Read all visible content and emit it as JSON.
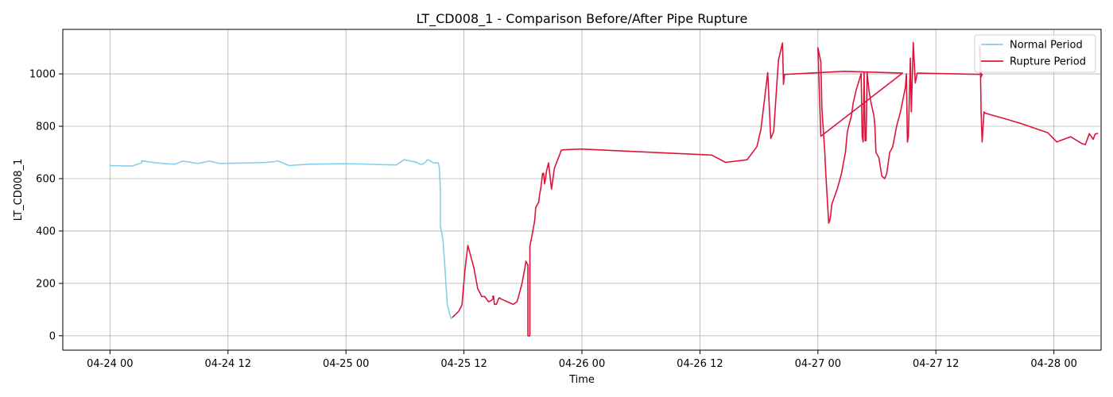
{
  "chart_data": {
    "type": "line",
    "title": "LT_CD008_1 - Comparison Before/After Pipe Rupture",
    "xlabel": "Time",
    "ylabel": "LT_CD008_1",
    "x_unit": "hours since 04-24 00:00",
    "xlim": [
      -4.8,
      100.8
    ],
    "ylim": [
      -55,
      1170
    ],
    "x_ticks": [
      {
        "value": 0,
        "label": "04-24 00"
      },
      {
        "value": 12,
        "label": "04-24 12"
      },
      {
        "value": 24,
        "label": "04-25 00"
      },
      {
        "value": 36,
        "label": "04-25 12"
      },
      {
        "value": 48,
        "label": "04-26 00"
      },
      {
        "value": 60,
        "label": "04-26 12"
      },
      {
        "value": 72,
        "label": "04-27 00"
      },
      {
        "value": 84,
        "label": "04-27 12"
      },
      {
        "value": 96,
        "label": "04-28 00"
      }
    ],
    "y_ticks": [
      {
        "value": 0,
        "label": "0"
      },
      {
        "value": 200,
        "label": "200"
      },
      {
        "value": 400,
        "label": "400"
      },
      {
        "value": 600,
        "label": "600"
      },
      {
        "value": 800,
        "label": "800"
      },
      {
        "value": 1000,
        "label": "1000"
      }
    ],
    "grid": true,
    "legend_position": "top-right",
    "series": [
      {
        "name": "Normal Period",
        "color": "#87ceeb",
        "points": [
          [
            0,
            650
          ],
          [
            2.2,
            648
          ],
          [
            3.2,
            660
          ],
          [
            3.2,
            660
          ],
          [
            3.2,
            660
          ],
          [
            3.3,
            668
          ],
          [
            3.2,
            668
          ],
          [
            4.8,
            660
          ],
          [
            5.7,
            657
          ],
          [
            6.6,
            655
          ],
          [
            7.4,
            667
          ],
          [
            8.3,
            662
          ],
          [
            8.0,
            664
          ],
          [
            8.9,
            658
          ],
          [
            10.1,
            667
          ],
          [
            10.6,
            663
          ],
          [
            11.1,
            658
          ],
          [
            14.3,
            660
          ],
          [
            15.9,
            662
          ],
          [
            16.8,
            665
          ],
          [
            17.1,
            668
          ],
          [
            18.2,
            650
          ],
          [
            20.2,
            655
          ],
          [
            23.9,
            657
          ],
          [
            25.4,
            656
          ],
          [
            29.1,
            652
          ],
          [
            29.9,
            672
          ],
          [
            31.1,
            663
          ],
          [
            31.2,
            662
          ],
          [
            31.3,
            660
          ],
          [
            31.4,
            658
          ],
          [
            31.5,
            656
          ],
          [
            31.6,
            655
          ],
          [
            31.8,
            655
          ],
          [
            32.0,
            660
          ],
          [
            32.3,
            672
          ],
          [
            32.5,
            670
          ],
          [
            32.6,
            667
          ],
          [
            32.9,
            660
          ],
          [
            33.1,
            660
          ],
          [
            33.4,
            660
          ],
          [
            33.5,
            640
          ],
          [
            33.6,
            560
          ],
          [
            33.6,
            420
          ],
          [
            33.8,
            380
          ],
          [
            33.9,
            350
          ],
          [
            34.1,
            240
          ],
          [
            34.2,
            180
          ],
          [
            34.3,
            120
          ],
          [
            34.5,
            90
          ],
          [
            34.6,
            75
          ],
          [
            34.7,
            65
          ],
          [
            34.8,
            70
          ]
        ]
      },
      {
        "name": "Rupture Period",
        "color": "#dc143c",
        "points": [
          [
            34.8,
            70
          ],
          [
            35.1,
            80
          ],
          [
            35.5,
            95
          ],
          [
            35.8,
            118
          ],
          [
            36.1,
            250
          ],
          [
            36.4,
            345
          ],
          [
            37.0,
            260
          ],
          [
            37.4,
            180
          ],
          [
            37.8,
            150
          ],
          [
            38.1,
            150
          ],
          [
            38.5,
            130
          ],
          [
            38.8,
            135
          ],
          [
            38.9,
            140
          ],
          [
            39.0,
            145
          ],
          [
            38.9,
            150
          ],
          [
            39.0,
            150
          ],
          [
            39.0,
            152
          ],
          [
            39.1,
            120
          ],
          [
            39.3,
            120
          ],
          [
            39.5,
            140
          ],
          [
            39.6,
            145
          ],
          [
            39.8,
            140
          ],
          [
            40.1,
            135
          ],
          [
            41.0,
            120
          ],
          [
            41.4,
            130
          ],
          [
            41.6,
            155
          ],
          [
            41.9,
            200
          ],
          [
            42.2,
            260
          ],
          [
            42.3,
            285
          ],
          [
            42.5,
            270
          ],
          [
            42.5,
            0
          ],
          [
            42.6,
            0
          ],
          [
            42.7,
            0
          ],
          [
            42.7,
            340
          ],
          [
            43.0,
            400
          ],
          [
            43.2,
            440
          ],
          [
            43.3,
            490
          ],
          [
            43.6,
            510
          ],
          [
            43.7,
            540
          ],
          [
            43.8,
            560
          ],
          [
            44.0,
            620
          ],
          [
            44.1,
            620
          ],
          [
            44.2,
            580
          ],
          [
            44.3,
            600
          ],
          [
            44.4,
            630
          ],
          [
            44.6,
            660
          ],
          [
            44.9,
            560
          ],
          [
            45.2,
            640
          ],
          [
            45.9,
            708
          ],
          [
            46.1,
            710
          ],
          [
            47.9,
            713
          ],
          [
            61.2,
            690
          ],
          [
            62.6,
            662
          ],
          [
            64.8,
            672
          ],
          [
            65.8,
            722
          ],
          [
            66.2,
            788
          ],
          [
            66.9,
            1005
          ],
          [
            67.2,
            753
          ],
          [
            67.5,
            780
          ],
          [
            67.9,
            1004
          ],
          [
            68.0,
            1055
          ],
          [
            68.4,
            1118
          ],
          [
            68.5,
            960
          ],
          [
            68.6,
            998
          ],
          [
            74.7,
            1010
          ],
          [
            80.6,
            1003
          ],
          [
            72.3,
            762
          ],
          [
            72.0,
            1100
          ],
          [
            72.3,
            1045
          ],
          [
            72.4,
            870
          ],
          [
            72.7,
            700
          ],
          [
            72.8,
            620
          ],
          [
            73.1,
            430
          ],
          [
            73.2,
            440
          ],
          [
            73.3,
            460
          ],
          [
            73.4,
            500
          ],
          [
            74.0,
            565
          ],
          [
            74.4,
            620
          ],
          [
            74.8,
            700
          ],
          [
            75.0,
            780
          ],
          [
            75.4,
            840
          ],
          [
            75.6,
            890
          ],
          [
            75.9,
            940
          ],
          [
            76.4,
            1001
          ],
          [
            76.5,
            760
          ],
          [
            76.6,
            740
          ],
          [
            76.7,
            1005
          ],
          [
            76.8,
            745
          ],
          [
            76.9,
            745
          ],
          [
            77.0,
            1003
          ],
          [
            77.2,
            935
          ],
          [
            77.4,
            890
          ],
          [
            77.7,
            840
          ],
          [
            77.8,
            800
          ],
          [
            77.9,
            700
          ],
          [
            78.2,
            680
          ],
          [
            78.5,
            610
          ],
          [
            78.8,
            600
          ],
          [
            79.0,
            620
          ],
          [
            79.3,
            700
          ],
          [
            79.6,
            720
          ],
          [
            80.0,
            800
          ],
          [
            80.4,
            855
          ],
          [
            80.9,
            950
          ],
          [
            81.0,
            1000
          ],
          [
            81.1,
            740
          ],
          [
            81.2,
            760
          ],
          [
            81.4,
            1060
          ],
          [
            81.5,
            855
          ],
          [
            81.7,
            1120
          ],
          [
            81.9,
            965
          ],
          [
            82.1,
            1003
          ],
          [
            88.7,
            998
          ],
          [
            88.6,
            988
          ],
          [
            88.4,
            1108
          ],
          [
            88.5,
            1100
          ],
          [
            88.6,
            850
          ],
          [
            88.7,
            740
          ],
          [
            88.8,
            800
          ],
          [
            88.9,
            855
          ],
          [
            89.0,
            850
          ],
          [
            90.9,
            830
          ],
          [
            92.7,
            810
          ],
          [
            95.4,
            775
          ],
          [
            96.3,
            740
          ],
          [
            96.6,
            745
          ],
          [
            97.7,
            760
          ],
          [
            98.8,
            735
          ],
          [
            99.2,
            730
          ],
          [
            99.6,
            772
          ],
          [
            100.0,
            750
          ],
          [
            100.2,
            770
          ],
          [
            100.5,
            773
          ]
        ]
      }
    ]
  }
}
